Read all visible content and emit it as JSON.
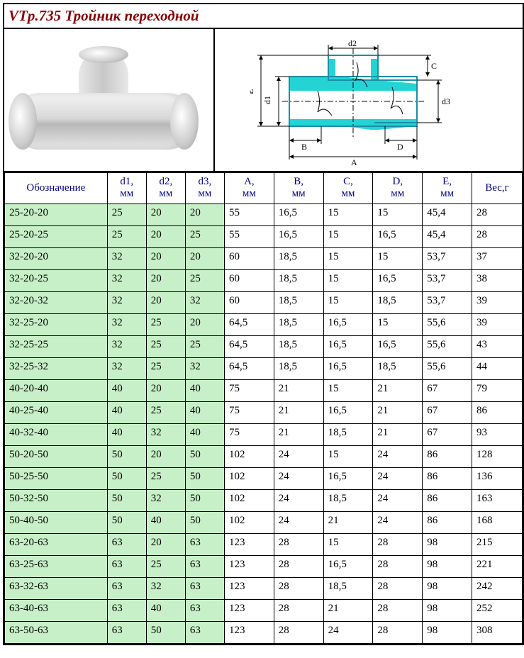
{
  "title": "VTp.735 Тройник переходной",
  "diagram_labels": {
    "d1": "d1",
    "d2": "d2",
    "d3": "d3",
    "A": "A",
    "B": "B",
    "C": "C",
    "D": "D",
    "E": "E"
  },
  "colors": {
    "title_color": "#8b0000",
    "header_text": "#000080",
    "green_bg": "#c8f0c8",
    "diagram_fill": "#24d4d4",
    "diagram_stroke": "#1a8fa6",
    "border": "#000000"
  },
  "table": {
    "columns": [
      {
        "label1": "Обозначение",
        "label2": "",
        "key": "obz",
        "class": "col-o green obz"
      },
      {
        "label1": "d1,",
        "label2": "мм",
        "key": "d1",
        "class": "col-d green"
      },
      {
        "label1": "d2,",
        "label2": "мм",
        "key": "d2",
        "class": "col-d green"
      },
      {
        "label1": "d3,",
        "label2": "мм",
        "key": "d3",
        "class": "col-d green"
      },
      {
        "label1": "A,",
        "label2": "мм",
        "key": "A",
        "class": "col-v"
      },
      {
        "label1": "B,",
        "label2": "мм",
        "key": "B",
        "class": "col-v"
      },
      {
        "label1": "C,",
        "label2": "мм",
        "key": "C",
        "class": "col-v"
      },
      {
        "label1": "D,",
        "label2": "мм",
        "key": "D",
        "class": "col-v"
      },
      {
        "label1": "E,",
        "label2": "мм",
        "key": "E",
        "class": "col-v"
      },
      {
        "label1": "Вес,г",
        "label2": "",
        "key": "w",
        "class": "col-v"
      }
    ],
    "rows": [
      {
        "obz": "25-20-20",
        "d1": "25",
        "d2": "20",
        "d3": "20",
        "A": "55",
        "B": "16,5",
        "C": "15",
        "D": "15",
        "E": "45,4",
        "w": "28"
      },
      {
        "obz": "25-20-25",
        "d1": "25",
        "d2": "20",
        "d3": "25",
        "A": "55",
        "B": "16,5",
        "C": "15",
        "D": "16,5",
        "E": "45,4",
        "w": "28"
      },
      {
        "obz": "32-20-20",
        "d1": "32",
        "d2": "20",
        "d3": "20",
        "A": "60",
        "B": "18,5",
        "C": "15",
        "D": "15",
        "E": "53,7",
        "w": "37"
      },
      {
        "obz": "32-20-25",
        "d1": "32",
        "d2": "20",
        "d3": "25",
        "A": "60",
        "B": "18,5",
        "C": "15",
        "D": "16,5",
        "E": "53,7",
        "w": "38"
      },
      {
        "obz": "32-20-32",
        "d1": "32",
        "d2": "20",
        "d3": "32",
        "A": "60",
        "B": "18,5",
        "C": "15",
        "D": "18,5",
        "E": "53,7",
        "w": "39"
      },
      {
        "obz": "32-25-20",
        "d1": "32",
        "d2": "25",
        "d3": "20",
        "A": "64,5",
        "B": "18,5",
        "C": "16,5",
        "D": "15",
        "E": "55,6",
        "w": "39"
      },
      {
        "obz": "32-25-25",
        "d1": "32",
        "d2": "25",
        "d3": "25",
        "A": "64,5",
        "B": "18,5",
        "C": "16,5",
        "D": "16,5",
        "E": "55,6",
        "w": "43"
      },
      {
        "obz": "32-25-32",
        "d1": "32",
        "d2": "25",
        "d3": "32",
        "A": "64,5",
        "B": "18,5",
        "C": "16,5",
        "D": "18,5",
        "E": "55,6",
        "w": "44"
      },
      {
        "obz": "40-20-40",
        "d1": "40",
        "d2": "20",
        "d3": "40",
        "A": "75",
        "B": "21",
        "C": "15",
        "D": "21",
        "E": "67",
        "w": "79"
      },
      {
        "obz": "40-25-40",
        "d1": "40",
        "d2": "25",
        "d3": "40",
        "A": "75",
        "B": "21",
        "C": "16,5",
        "D": "21",
        "E": "67",
        "w": "86"
      },
      {
        "obz": "40-32-40",
        "d1": "40",
        "d2": "32",
        "d3": "40",
        "A": "75",
        "B": "21",
        "C": "18,5",
        "D": "21",
        "E": "67",
        "w": "93"
      },
      {
        "obz": "50-20-50",
        "d1": "50",
        "d2": "20",
        "d3": "50",
        "A": "102",
        "B": "24",
        "C": "15",
        "D": "24",
        "E": "86",
        "w": "128"
      },
      {
        "obz": "50-25-50",
        "d1": "50",
        "d2": "25",
        "d3": "50",
        "A": "102",
        "B": "24",
        "C": "16,5",
        "D": "24",
        "E": "86",
        "w": "136"
      },
      {
        "obz": "50-32-50",
        "d1": "50",
        "d2": "32",
        "d3": "50",
        "A": "102",
        "B": "24",
        "C": "18,5",
        "D": "24",
        "E": "86",
        "w": "163"
      },
      {
        "obz": "50-40-50",
        "d1": "50",
        "d2": "40",
        "d3": "50",
        "A": "102",
        "B": "24",
        "C": "21",
        "D": "24",
        "E": "86",
        "w": "168"
      },
      {
        "obz": "63-20-63",
        "d1": "63",
        "d2": "20",
        "d3": "63",
        "A": "123",
        "B": "28",
        "C": "15",
        "D": "28",
        "E": "98",
        "w": "215"
      },
      {
        "obz": "63-25-63",
        "d1": "63",
        "d2": "25",
        "d3": "63",
        "A": "123",
        "B": "28",
        "C": "16,5",
        "D": "28",
        "E": "98",
        "w": "221"
      },
      {
        "obz": "63-32-63",
        "d1": "63",
        "d2": "32",
        "d3": "63",
        "A": "123",
        "B": "28",
        "C": "18,5",
        "D": "28",
        "E": "98",
        "w": "242"
      },
      {
        "obz": "63-40-63",
        "d1": "63",
        "d2": "40",
        "d3": "63",
        "A": "123",
        "B": "28",
        "C": "21",
        "D": "28",
        "E": "98",
        "w": "252"
      },
      {
        "obz": "63-50-63",
        "d1": "63",
        "d2": "50",
        "d3": "63",
        "A": "123",
        "B": "28",
        "C": "24",
        "D": "28",
        "E": "98",
        "w": "308"
      }
    ]
  }
}
